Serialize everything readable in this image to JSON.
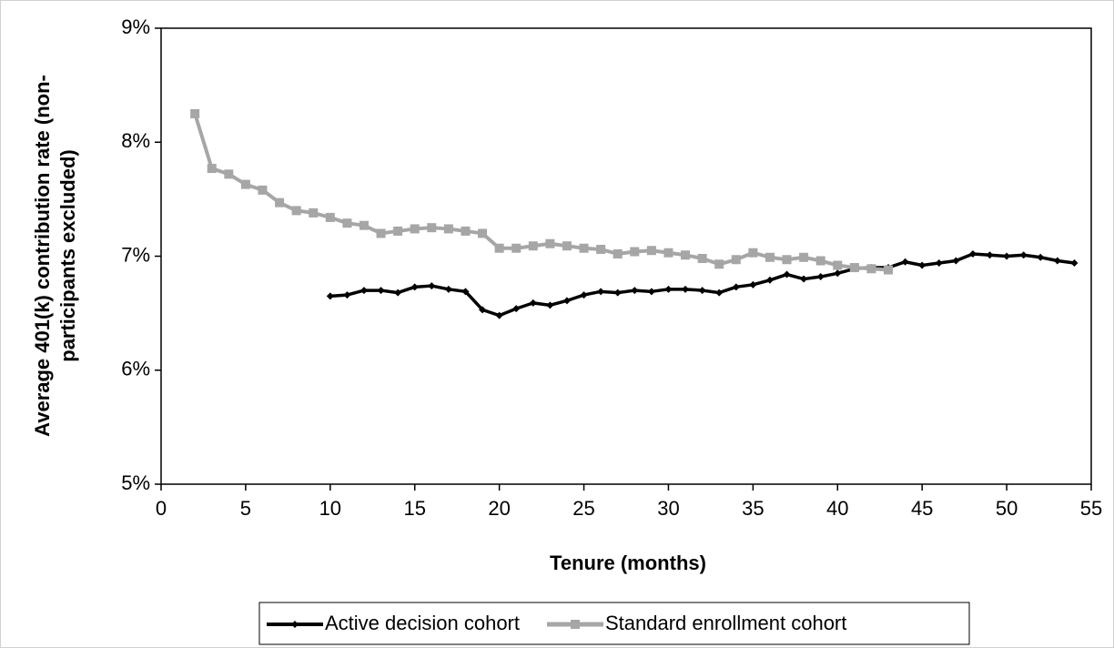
{
  "chart_data": {
    "type": "line",
    "xlabel": "Tenure (months)",
    "ylabel": [
      "Average 401(k) contribution rate (non-",
      "participants excluded)"
    ],
    "xlim": [
      0,
      55
    ],
    "xticks": [
      0,
      5,
      10,
      15,
      20,
      25,
      30,
      35,
      40,
      45,
      50,
      55
    ],
    "ylim": [
      5,
      9
    ],
    "yticks": [
      {
        "value": 5,
        "label": "5%"
      },
      {
        "value": 6,
        "label": "6%"
      },
      {
        "value": 7,
        "label": "7%"
      },
      {
        "value": 8,
        "label": "8%"
      },
      {
        "value": 9,
        "label": "9%"
      }
    ],
    "legend": "bottom",
    "series": [
      {
        "name": "Active decision cohort",
        "color": "#000000",
        "marker": "diamond",
        "x": [
          10,
          11,
          12,
          13,
          14,
          15,
          16,
          17,
          18,
          19,
          20,
          21,
          22,
          23,
          24,
          25,
          26,
          27,
          28,
          29,
          30,
          31,
          32,
          33,
          34,
          35,
          36,
          37,
          38,
          39,
          40,
          41,
          42,
          43,
          44,
          45,
          46,
          47,
          48,
          49,
          50,
          51,
          52,
          53,
          54
        ],
        "values": [
          6.65,
          6.66,
          6.7,
          6.7,
          6.68,
          6.73,
          6.74,
          6.71,
          6.69,
          6.53,
          6.48,
          6.54,
          6.59,
          6.57,
          6.61,
          6.66,
          6.69,
          6.68,
          6.7,
          6.69,
          6.71,
          6.71,
          6.7,
          6.68,
          6.73,
          6.75,
          6.79,
          6.84,
          6.8,
          6.82,
          6.85,
          6.89,
          6.9,
          6.9,
          6.95,
          6.92,
          6.94,
          6.96,
          7.02,
          7.01,
          7.0,
          7.01,
          6.99,
          6.96,
          6.94
        ]
      },
      {
        "name": "Standard enrollment cohort",
        "color": "#a6a6a6",
        "marker": "square",
        "x": [
          2,
          3,
          4,
          5,
          6,
          7,
          8,
          9,
          10,
          11,
          12,
          13,
          14,
          15,
          16,
          17,
          18,
          19,
          20,
          21,
          22,
          23,
          24,
          25,
          26,
          27,
          28,
          29,
          30,
          31,
          32,
          33,
          34,
          35,
          36,
          37,
          38,
          39,
          40,
          41,
          42,
          43
        ],
        "values": [
          8.25,
          7.77,
          7.72,
          7.63,
          7.58,
          7.47,
          7.4,
          7.38,
          7.34,
          7.29,
          7.27,
          7.2,
          7.22,
          7.24,
          7.25,
          7.24,
          7.22,
          7.2,
          7.07,
          7.07,
          7.09,
          7.11,
          7.09,
          7.07,
          7.06,
          7.02,
          7.04,
          7.05,
          7.03,
          7.01,
          6.98,
          6.93,
          6.97,
          7.03,
          6.99,
          6.97,
          6.99,
          6.96,
          6.92,
          6.9,
          6.89,
          6.88
        ]
      }
    ]
  }
}
